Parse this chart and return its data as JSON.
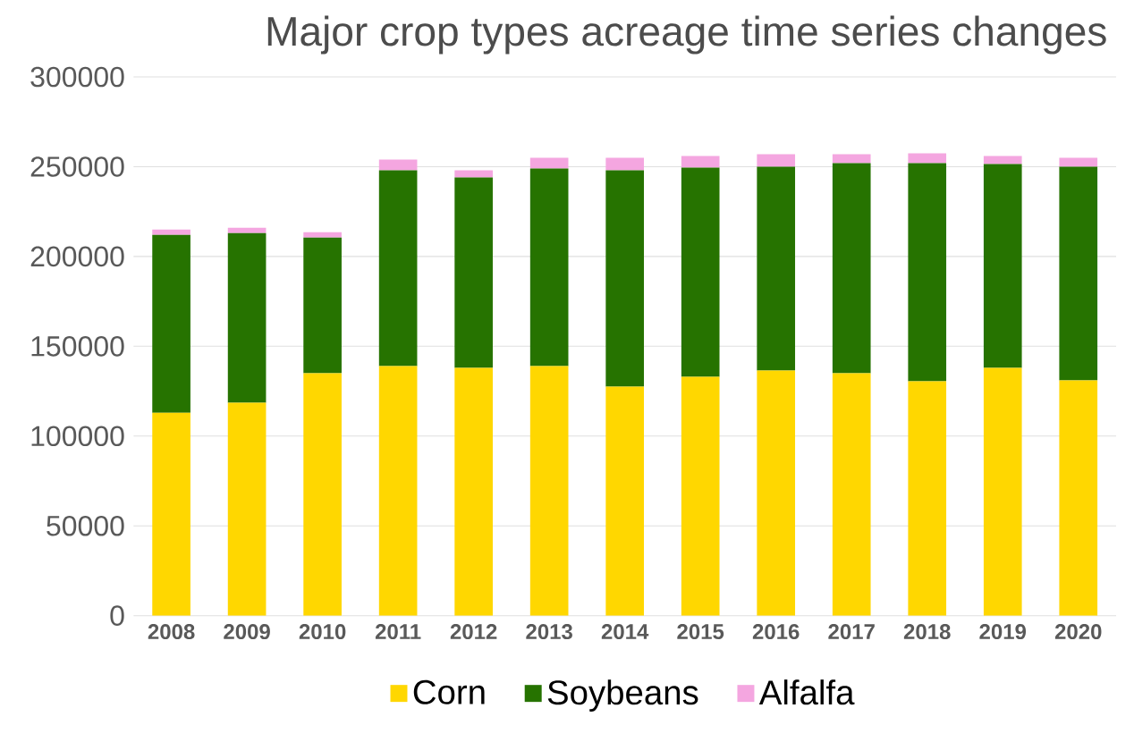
{
  "chart_data": {
    "type": "bar",
    "title": "Major crop types acreage time series changes",
    "categories": [
      "2008",
      "2009",
      "2010",
      "2011",
      "2012",
      "2013",
      "2014",
      "2015",
      "2016",
      "2017",
      "2018",
      "2019",
      "2020"
    ],
    "stacked": true,
    "series": [
      {
        "name": "Corn",
        "color": "#ffd700",
        "values": [
          113000,
          118500,
          135000,
          139000,
          138000,
          139000,
          127500,
          133000,
          136500,
          135000,
          130500,
          138000,
          131000
        ]
      },
      {
        "name": "Soybeans",
        "color": "#267300",
        "values": [
          99000,
          94500,
          75500,
          109000,
          106000,
          110000,
          120500,
          116500,
          113500,
          117000,
          121500,
          113500,
          119000
        ]
      },
      {
        "name": "Alfalfa",
        "color": "#f4a6e0",
        "values": [
          3000,
          3000,
          3000,
          6000,
          4000,
          6000,
          7000,
          6500,
          7000,
          5000,
          5500,
          4500,
          5000
        ]
      }
    ],
    "ylim": [
      0,
      300000
    ],
    "yticks": [
      0,
      50000,
      100000,
      150000,
      200000,
      250000,
      300000
    ],
    "grid": "y",
    "legend": "bottom"
  }
}
